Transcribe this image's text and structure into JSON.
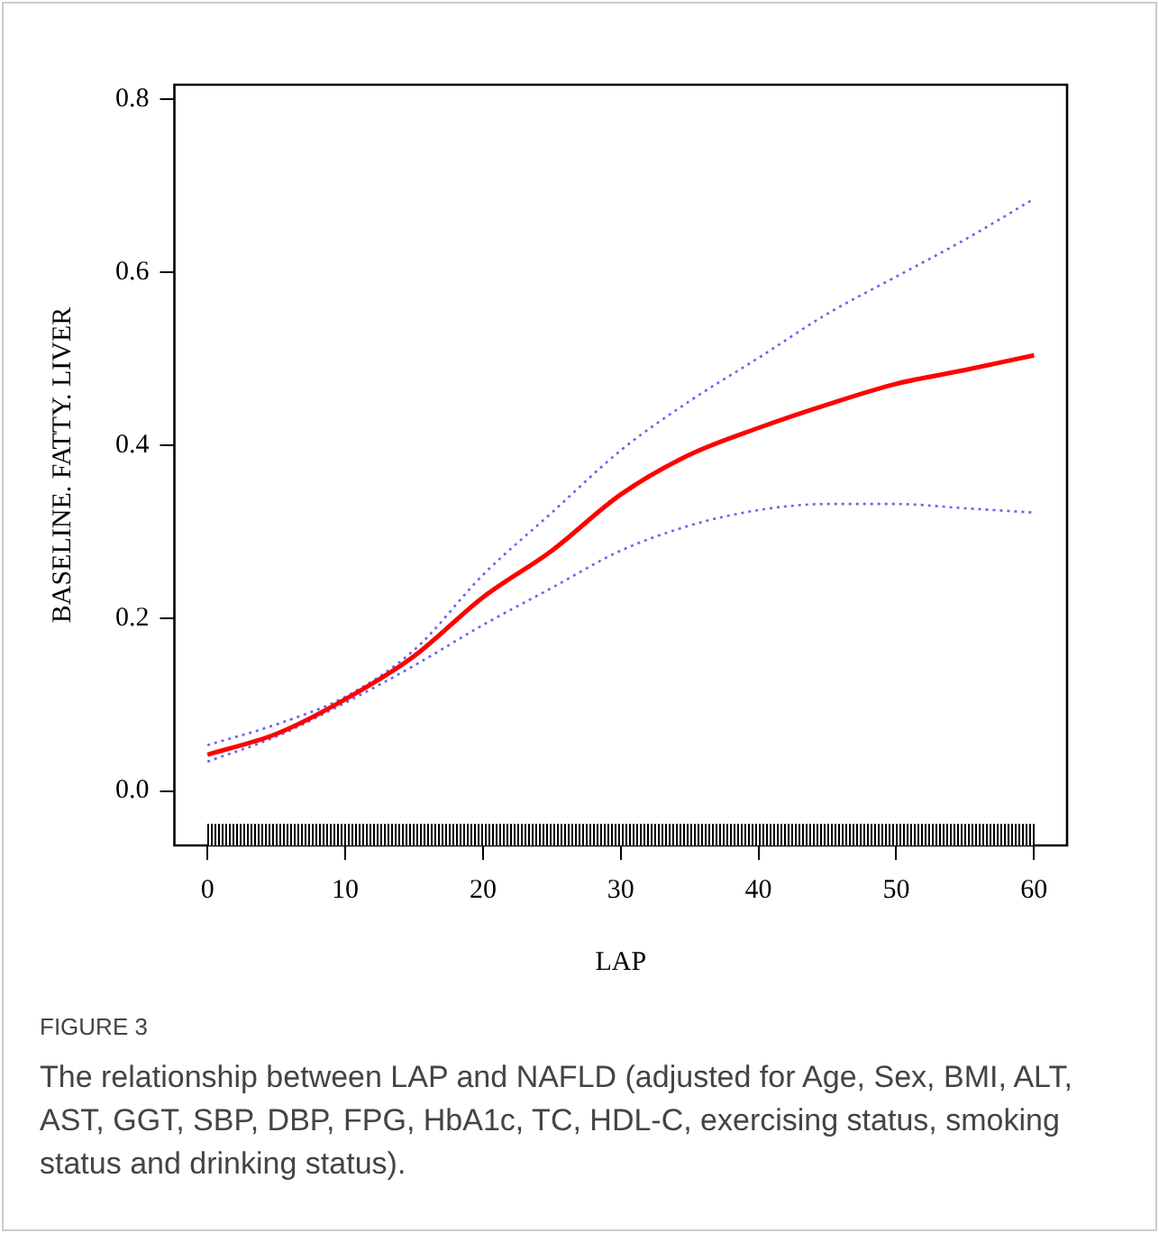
{
  "chart_data": {
    "type": "line",
    "xlabel": "LAP",
    "ylabel": "BASELINE. FATTY. LIVER",
    "x": [
      0,
      5,
      10,
      15,
      20,
      25,
      30,
      35,
      40,
      45,
      50,
      55,
      60
    ],
    "series": [
      {
        "color": "#ff0000",
        "line_style": "solid",
        "values": [
          0.042,
          0.066,
          0.106,
          0.156,
          0.224,
          0.278,
          0.343,
          0.389,
          0.42,
          0.447,
          0.471,
          0.487,
          0.504
        ]
      },
      {
        "color": "#6666ee",
        "line_style": "dotted",
        "values": [
          0.053,
          0.077,
          0.109,
          0.163,
          0.25,
          0.322,
          0.394,
          0.451,
          0.501,
          0.552,
          0.595,
          0.638,
          0.685
        ]
      },
      {
        "color": "#6666ee",
        "line_style": "dotted",
        "values": [
          0.034,
          0.063,
          0.102,
          0.145,
          0.192,
          0.235,
          0.278,
          0.307,
          0.325,
          0.332,
          0.332,
          0.327,
          0.322
        ]
      }
    ],
    "xlim": [
      -2.4,
      62.4
    ],
    "ylim": [
      -0.063,
      0.817
    ],
    "xticks": [
      0,
      10,
      20,
      30,
      40,
      50,
      60
    ],
    "yticks": [
      {
        "value": 0,
        "label": "0.0"
      },
      {
        "value": 0.2,
        "label": "0.2"
      },
      {
        "value": 0.4,
        "label": "0.4"
      },
      {
        "value": 0.6,
        "label": "0.6"
      },
      {
        "value": 0.8,
        "label": "0.8"
      }
    ],
    "grid": false,
    "legend": false,
    "marker": "none",
    "annotations": [
      "FIGURE 3",
      "The relationship between LAP and NAFLD (adjusted for Age, Sex, BMI, ALT, AST, GGT, SBP, DBP, FPG, HbA1c, TC, HDL-C, exercising status, smoking status and drinking status)."
    ]
  }
}
